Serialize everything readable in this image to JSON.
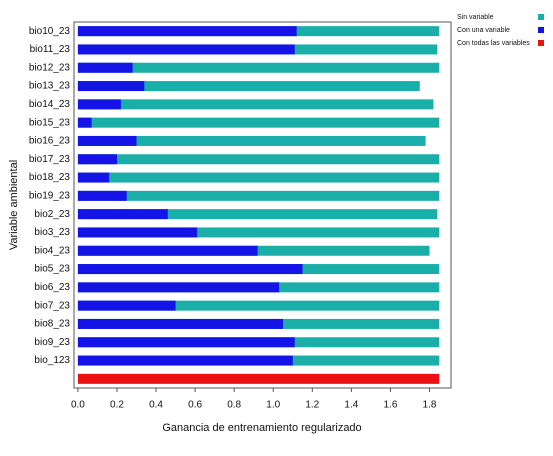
{
  "chart_data": {
    "type": "bar",
    "orientation": "horizontal",
    "xlabel": "Ganancia de entrenamiento regularizado",
    "ylabel": "Variable ambiental",
    "categories": [
      "bio10_23",
      "bio11_23",
      "bio12_23",
      "bio13_23",
      "bio14_23",
      "bio15_23",
      "bio16_23",
      "bio17_23",
      "bio18_23",
      "bio19_23",
      "bio2_23",
      "bio3_23",
      "bio4_23",
      "bio5_23",
      "bio6_23",
      "bio7_23",
      "bio8_23",
      "bio9_23",
      "bio_123",
      null
    ],
    "series": [
      {
        "name": "Sin variable",
        "color": "#1aaea8",
        "values": [
          1.85,
          1.84,
          1.85,
          1.75,
          1.82,
          1.85,
          1.78,
          1.85,
          1.85,
          1.85,
          1.84,
          1.85,
          1.8,
          1.85,
          1.85,
          1.85,
          1.85,
          1.85,
          1.85,
          null
        ]
      },
      {
        "name": "Con una variable",
        "color": "#1414e6",
        "values": [
          1.12,
          1.11,
          0.28,
          0.34,
          0.22,
          0.07,
          0.3,
          0.2,
          0.16,
          0.25,
          0.46,
          0.61,
          0.92,
          1.15,
          1.03,
          0.5,
          1.05,
          1.11,
          1.1,
          null
        ]
      },
      {
        "name": "Con todas las variables",
        "color": "#ee1111",
        "values": [
          null,
          null,
          null,
          null,
          null,
          null,
          null,
          null,
          null,
          null,
          null,
          null,
          null,
          null,
          null,
          null,
          null,
          null,
          null,
          1.85
        ]
      }
    ],
    "xlim": [
      -0.02,
      1.91
    ],
    "xticks": [
      {
        "value": 0,
        "label": "0.0"
      },
      0.2,
      0.4,
      0.6,
      0.8,
      {
        "value": 1,
        "label": "1.0"
      },
      1.2,
      1.4,
      1.6,
      1.8
    ],
    "legend": "right"
  }
}
